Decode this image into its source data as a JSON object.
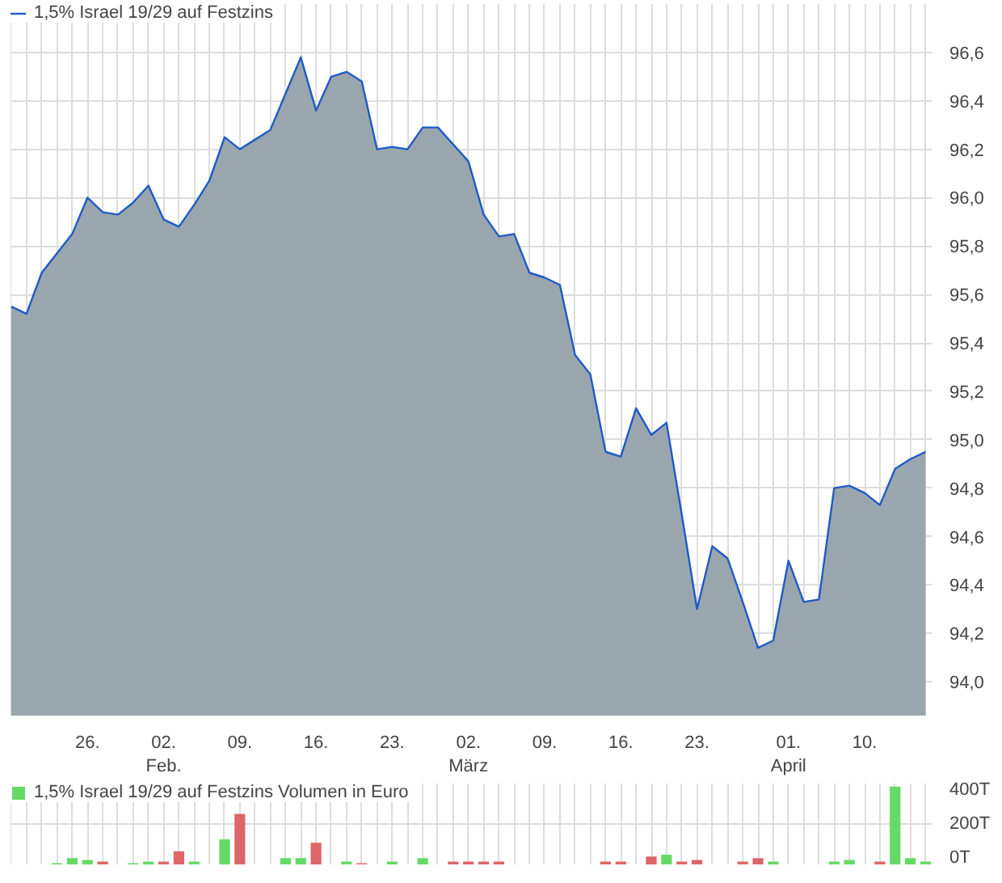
{
  "chart_data": [
    {
      "type": "area",
      "categories": [
        null,
        null,
        null,
        null,
        null,
        "26.",
        null,
        null,
        null,
        null,
        "02.\nFeb.",
        null,
        null,
        null,
        null,
        "09.",
        null,
        null,
        null,
        null,
        "16.",
        null,
        null,
        null,
        null,
        "23.",
        null,
        null,
        null,
        null,
        "02.\nMärz",
        null,
        null,
        null,
        null,
        "09.",
        null,
        null,
        null,
        null,
        "16.",
        null,
        null,
        null,
        null,
        "23.",
        null,
        null,
        null,
        null,
        null,
        "01.\nApril",
        null,
        null,
        null,
        null,
        "10.",
        null,
        null,
        null,
        null
      ],
      "series": [
        {
          "name": "1,5% Israel 19/29 auf Festzins",
          "color": "#1e5bc6",
          "values": [
            95.55,
            95.52,
            95.69,
            95.77,
            95.85,
            96.0,
            95.94,
            95.93,
            95.98,
            96.05,
            95.91,
            95.88,
            95.97,
            96.07,
            96.25,
            96.2,
            96.24,
            96.28,
            96.43,
            96.58,
            96.36,
            96.5,
            96.52,
            96.48,
            96.2,
            96.21,
            96.2,
            96.29,
            96.29,
            96.22,
            96.15,
            95.93,
            95.84,
            95.85,
            95.69,
            95.67,
            95.64,
            95.35,
            95.27,
            94.95,
            94.93,
            95.13,
            95.02,
            95.07,
            94.69,
            94.3,
            94.56,
            94.51,
            94.33,
            94.14,
            94.17,
            94.5,
            94.33,
            94.34,
            94.8,
            94.81,
            94.78,
            94.73,
            94.88,
            94.92,
            94.95
          ]
        }
      ],
      "ylim": [
        93.86,
        96.8
      ],
      "yticks": [
        {
          "value": 94.0,
          "label": "94,0"
        },
        {
          "value": 94.2,
          "label": "94,2"
        },
        {
          "value": 94.4,
          "label": "94,4"
        },
        {
          "value": 94.6,
          "label": "94,6"
        },
        {
          "value": 94.8,
          "label": "94,8"
        },
        {
          "value": 95.0,
          "label": "95,0"
        },
        {
          "value": 95.2,
          "label": "95,2"
        },
        {
          "value": 95.4,
          "label": "95,4"
        },
        {
          "value": 95.6,
          "label": "95,6"
        },
        {
          "value": 95.8,
          "label": "95,8"
        },
        {
          "value": 96.0,
          "label": "96,0"
        },
        {
          "value": 96.2,
          "label": "96,2"
        },
        {
          "value": 96.4,
          "label": "96,4"
        },
        {
          "value": 96.6,
          "label": "96,6"
        }
      ],
      "grid": true,
      "legend": "top left"
    },
    {
      "type": "bar",
      "categories": [
        null,
        null,
        null,
        null,
        null,
        null,
        null,
        null,
        null,
        null,
        null,
        null,
        null,
        null,
        null,
        null,
        null,
        null,
        null,
        null,
        null,
        null,
        null,
        null,
        null,
        null,
        null,
        null,
        null,
        null,
        null,
        null,
        null,
        null,
        null,
        null,
        null,
        null,
        null,
        null,
        null,
        null,
        null,
        null,
        null,
        null,
        null,
        null,
        null,
        null,
        null,
        null,
        null,
        null,
        null,
        null,
        null,
        null,
        null,
        null,
        null
      ],
      "series": [
        {
          "name": "1,5% Israel 19/29 auf Festzins Volumen in Euro",
          "color": "#66d966",
          "values": [
            null,
            null,
            null,
            6,
            31,
            22,
            14,
            null,
            6,
            14,
            14,
            65,
            14,
            null,
            124,
            250,
            null,
            null,
            31,
            31,
            107,
            null,
            14,
            6,
            null,
            14,
            null,
            31,
            null,
            14,
            14,
            14,
            14,
            null,
            null,
            null,
            null,
            null,
            null,
            14,
            14,
            null,
            39,
            48,
            14,
            22,
            null,
            null,
            14,
            31,
            14,
            null,
            null,
            null,
            14,
            22,
            null,
            14,
            385,
            31,
            14
          ],
          "colors": [
            null,
            null,
            null,
            "#66d966",
            "#66d966",
            "#66d966",
            "#dd6666",
            null,
            "#66d966",
            "#66d966",
            "#dd6666",
            "#dd6666",
            "#66d966",
            null,
            "#66d966",
            "#dd6666",
            null,
            null,
            "#66d966",
            "#66d966",
            "#dd6666",
            null,
            "#66d966",
            "#dd6666",
            null,
            "#66d966",
            null,
            "#66d966",
            null,
            "#dd6666",
            "#dd6666",
            "#dd6666",
            "#dd6666",
            null,
            null,
            null,
            null,
            null,
            null,
            "#dd6666",
            "#dd6666",
            null,
            "#dd6666",
            "#66d966",
            "#dd6666",
            "#dd6666",
            null,
            null,
            "#dd6666",
            "#dd6666",
            "#66d966",
            null,
            null,
            null,
            "#66d966",
            "#66d966",
            null,
            "#dd6666",
            "#66d966",
            "#66d966",
            "#66d966"
          ]
        }
      ],
      "ylim": [
        0,
        400
      ],
      "yticks": [
        {
          "value": 0,
          "label": "0T"
        },
        {
          "value": 200,
          "label": "200T"
        },
        {
          "value": 400,
          "label": "400T"
        }
      ],
      "grid": true,
      "legend": "top left",
      "tick_labels": "y"
    }
  ]
}
